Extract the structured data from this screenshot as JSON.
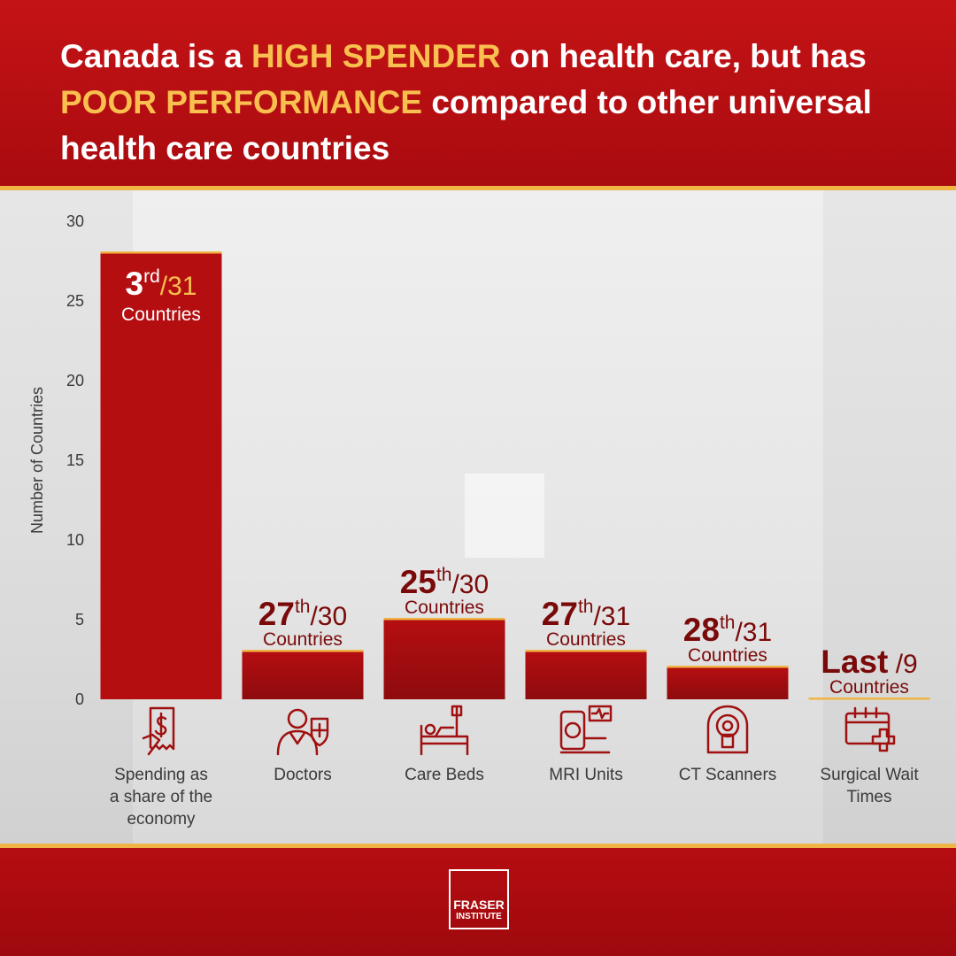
{
  "header": {
    "title_parts": [
      {
        "text": "Canada is a ",
        "highlight": false
      },
      {
        "text": "HIGH SPENDER",
        "highlight": true
      },
      {
        "text": " on health care, but has ",
        "highlight": false
      },
      {
        "text": "POOR PERFORMANCE",
        "highlight": true
      },
      {
        "text": " compared to other universal health care countries",
        "highlight": false
      }
    ]
  },
  "colors": {
    "brand_red": "#b40c10",
    "highlight_gold": "#f9c04f",
    "bar_red": "#b00d10",
    "rank_dark": "#7a0a0a"
  },
  "chart_data": {
    "type": "bar",
    "ylabel": "Number of Countries",
    "ylim": [
      0,
      30
    ],
    "yticks": [
      0,
      5,
      10,
      15,
      20,
      25,
      30
    ],
    "categories": [
      "Spending as a share of the economy",
      "Doctors",
      "Care Beds",
      "MRI Units",
      "CT Scanners",
      "Surgical Wait Times"
    ],
    "category_lines": [
      [
        "Spending as",
        "a share of the",
        "economy"
      ],
      [
        "Doctors"
      ],
      [
        "Care Beds"
      ],
      [
        "MRI Units"
      ],
      [
        "CT Scanners"
      ],
      [
        "Surgical Wait",
        "Times"
      ]
    ],
    "values": [
      28,
      3,
      5,
      3,
      2,
      0
    ],
    "ranks": [
      {
        "rank": "3",
        "suffix": "rd",
        "total": "/31",
        "unit": "Countries"
      },
      {
        "rank": "27",
        "suffix": "th",
        "total": "/30",
        "unit": "Countries"
      },
      {
        "rank": "25",
        "suffix": "th",
        "total": "/30",
        "unit": "Countries"
      },
      {
        "rank": "27",
        "suffix": "th",
        "total": "/31",
        "unit": "Countries"
      },
      {
        "rank": "28",
        "suffix": "th",
        "total": "/31",
        "unit": "Countries"
      },
      {
        "rank": "Last",
        "suffix": "",
        "total": " /9",
        "unit": "Countries"
      }
    ],
    "icons": [
      "receipt-dollar-icon",
      "doctor-icon",
      "hospital-bed-icon",
      "mri-machine-icon",
      "ct-scanner-icon",
      "calendar-medical-icon"
    ],
    "grid": false
  },
  "logo": {
    "line1": "FRASER",
    "line2": "INSTITUTE"
  }
}
